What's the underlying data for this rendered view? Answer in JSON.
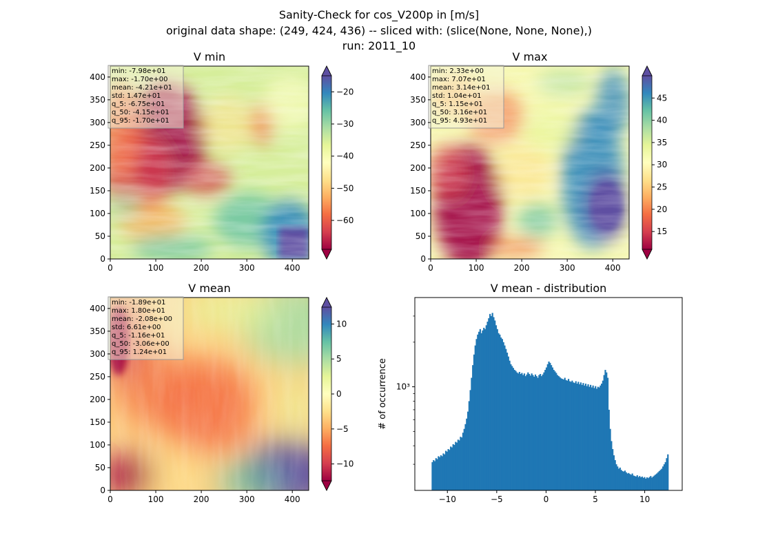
{
  "figure": {
    "title_lines": [
      "Sanity-Check for cos_V200p in [m/s]",
      "original data shape: (249, 424, 436) -- sliced with: (slice(None, None, None),)",
      "run: 2011_10"
    ]
  },
  "chart_data": [
    {
      "type": "heatmap",
      "title": "V min",
      "colormap": "Spectral",
      "xlim": [
        0,
        436
      ],
      "ylim": [
        0,
        424
      ],
      "xticks": [
        "0",
        "100",
        "200",
        "300",
        "400"
      ],
      "yticks": [
        "0",
        "50",
        "100",
        "150",
        "200",
        "250",
        "300",
        "350",
        "400"
      ],
      "colorbar": {
        "range": [
          -69,
          -15
        ],
        "ticks": [
          "−60",
          "−50",
          "−40",
          "−30",
          "−20"
        ],
        "tick_values": [
          -60,
          -50,
          -40,
          -30,
          -20
        ],
        "extend": "both"
      },
      "stats": [
        "min: -7.98e+01",
        "max: -1.70e+00",
        "mean: -4.21e+01",
        "std: 1.47e+01",
        "q_5: -6.75e+01",
        "q_50: -4.15e+01",
        "q_95: -1.70e+01"
      ]
    },
    {
      "type": "heatmap",
      "title": "V max",
      "colormap": "Spectral",
      "xlim": [
        0,
        436
      ],
      "ylim": [
        0,
        424
      ],
      "xticks": [
        "0",
        "100",
        "200",
        "300",
        "400"
      ],
      "yticks": [
        "0",
        "50",
        "100",
        "150",
        "200",
        "250",
        "300",
        "350",
        "400"
      ],
      "colorbar": {
        "range": [
          11,
          50
        ],
        "ticks": [
          "15",
          "20",
          "25",
          "30",
          "35",
          "40",
          "45"
        ],
        "tick_values": [
          15,
          20,
          25,
          30,
          35,
          40,
          45
        ],
        "extend": "both"
      },
      "stats": [
        "min: 2.33e+00",
        "max: 7.07e+01",
        "mean: 3.14e+01",
        "std: 1.04e+01",
        "q_5: 1.15e+01",
        "q_50: 3.16e+01",
        "q_95: 4.93e+01"
      ]
    },
    {
      "type": "heatmap",
      "title": "V mean",
      "colormap": "Spectral",
      "xlim": [
        0,
        436
      ],
      "ylim": [
        0,
        424
      ],
      "xticks": [
        "0",
        "100",
        "200",
        "300",
        "400"
      ],
      "yticks": [
        "0",
        "50",
        "100",
        "150",
        "200",
        "250",
        "300",
        "350",
        "400"
      ],
      "colorbar": {
        "range": [
          -12.4,
          12.4
        ],
        "ticks": [
          "−10",
          "−5",
          "0",
          "5",
          "10"
        ],
        "tick_values": [
          -10,
          -5,
          0,
          5,
          10
        ],
        "extend": "both"
      },
      "stats": [
        "min: -1.89e+01",
        "max: 1.80e+01",
        "mean: -2.08e+00",
        "std: 6.61e+00",
        "q_5: -1.16e+01",
        "q_50: -3.06e+00",
        "q_95: 1.24e+01"
      ]
    },
    {
      "type": "bar",
      "title": "V mean - distribution",
      "ylabel": "# of occurrence",
      "yscale": "log",
      "bar_color": "#1f77b4",
      "xlim": [
        -13.3,
        13.8
      ],
      "ylim": [
        200,
        4000
      ],
      "xticks": [
        "−10",
        "−5",
        "0",
        "5",
        "10"
      ],
      "xtick_values": [
        -10,
        -5,
        0,
        5,
        10
      ],
      "yticks": [
        "10³"
      ],
      "ytick_values": [
        1000
      ],
      "bin_start": -11.6,
      "bin_end": 12.4,
      "values": [
        310,
        320,
        315,
        330,
        325,
        340,
        335,
        345,
        340,
        355,
        350,
        370,
        365,
        380,
        375,
        395,
        390,
        410,
        405,
        425,
        420,
        440,
        435,
        460,
        455,
        490,
        520,
        560,
        610,
        680,
        800,
        950,
        1150,
        1400,
        1650,
        1900,
        2100,
        2250,
        2350,
        2450,
        2300,
        2400,
        2500,
        2450,
        2600,
        2750,
        2900,
        3100,
        3000,
        3150,
        2950,
        2800,
        2600,
        2450,
        2300,
        2250,
        2150,
        2100,
        2000,
        1900,
        1800,
        1700,
        1600,
        1500,
        1420,
        1380,
        1340,
        1300,
        1280,
        1250,
        1230,
        1260,
        1220,
        1240,
        1200,
        1230,
        1180,
        1210,
        1250,
        1220,
        1190,
        1230,
        1200,
        1170,
        1210,
        1180,
        1150,
        1200,
        1220,
        1180,
        1210,
        1250,
        1300,
        1350,
        1420,
        1480,
        1450,
        1400,
        1350,
        1300,
        1270,
        1240,
        1200,
        1180,
        1160,
        1140,
        1130,
        1120,
        1150,
        1110,
        1100,
        1130,
        1090,
        1080,
        1100,
        1070,
        1060,
        1090,
        1050,
        1080,
        1040,
        1070,
        1030,
        1060,
        1020,
        1050,
        1010,
        1040,
        1000,
        1030,
        990,
        1020,
        980,
        1010,
        970,
        1000,
        990,
        1020,
        1050,
        1100,
        1200,
        1300,
        1250,
        1150,
        700,
        520,
        430,
        380,
        345,
        320,
        300,
        290,
        280,
        285,
        275,
        270,
        268,
        272,
        265,
        260,
        262,
        258,
        255,
        260,
        252,
        250,
        248,
        253,
        246,
        250,
        245,
        248,
        243,
        246,
        240,
        245,
        242,
        246,
        250,
        244,
        248,
        252,
        256,
        260,
        265,
        270,
        275,
        280,
        290,
        300,
        310,
        330,
        350
      ]
    }
  ]
}
